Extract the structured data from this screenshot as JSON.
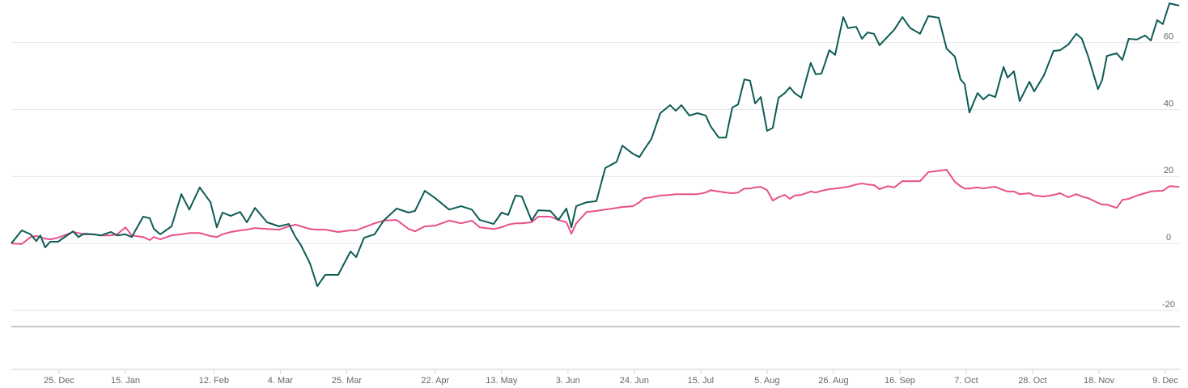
{
  "chart_data": {
    "type": "line",
    "x": [
      -15.1,
      -11.8,
      -9.0,
      -7.2,
      -5.9,
      -4.4,
      -2.8,
      -0.3,
      4.4,
      6.1,
      7.9,
      10.8,
      13.3,
      16.4,
      18.4,
      21.0,
      23.0,
      26.6,
      28.7,
      30.0,
      32.0,
      35.6,
      38.7,
      41.2,
      44.5,
      47.9,
      49.9,
      51.7,
      54.3,
      57.3,
      59.4,
      62.0,
      65.8,
      69.6,
      72.7,
      74.8,
      76.5,
      79.4,
      81.7,
      84.2,
      88.3,
      92.2,
      94.0,
      96.5,
      99.8,
      102.7,
      106.8,
      110.6,
      112.6,
      115.7,
      119.0,
      123.4,
      127.2,
      130.6,
      133.1,
      137.5,
      140.0,
      142.1,
      144.4,
      146.4,
      149.5,
      151.6,
      155.4,
      158.0,
      160.5,
      162.1,
      163.6,
      166.9,
      170.0,
      172.8,
      176.4,
      178.2,
      181.5,
      183.6,
      185.1,
      187.4,
      190.2,
      193.3,
      195.1,
      196.9,
      199.4,
      202.0,
      204.6,
      206.1,
      208.7,
      211.0,
      213.0,
      214.8,
      216.8,
      218.6,
      220.2,
      222.0,
      224.0,
      225.8,
      227.6,
      229.6,
      231.2,
      232.7,
      234.8,
      237.8,
      239.4,
      241.2,
      243.7,
      245.5,
      248.1,
      249.6,
      252.2,
      254.0,
      255.8,
      257.8,
      259.6,
      262.2,
      264.2,
      266.8,
      269.3,
      272.4,
      275.0,
      278.3,
      280.8,
      283.4,
      285.2,
      286.5,
      288.0,
      290.6,
      292.4,
      294.2,
      296.2,
      298.8,
      300.1,
      302.1,
      303.9,
      307.0,
      308.5,
      311.6,
      314.6,
      316.7,
      319.3,
      321.8,
      323.6,
      325.6,
      328.7,
      330.0,
      331.5,
      334.6,
      336.4,
      338.4,
      341.0,
      343.6,
      345.4,
      347.4,
      349.2,
      351.3,
      354.4
    ],
    "series": [
      {
        "color": "#0d5c56",
        "values": [
          0,
          3.9,
          2.7,
          0.7,
          2.4,
          -1.2,
          0.5,
          0.5,
          3.6,
          1.9,
          2.9,
          2.7,
          2.4,
          3.4,
          2.4,
          2.7,
          1.9,
          8.0,
          7.5,
          4.3,
          2.7,
          5.1,
          14.7,
          10.1,
          16.7,
          12.3,
          4.8,
          9.2,
          8.2,
          9.4,
          6.3,
          10.6,
          6.3,
          5.1,
          5.8,
          1.9,
          -0.5,
          -6.0,
          -12.8,
          -9.4,
          -9.4,
          -2.4,
          -4.1,
          1.7,
          2.7,
          6.8,
          10.4,
          9.2,
          9.7,
          15.7,
          13.5,
          10.1,
          11.1,
          10.1,
          7.0,
          5.8,
          9.2,
          8.5,
          14.3,
          14.0,
          6.8,
          9.9,
          9.7,
          7.0,
          10.4,
          4.8,
          11.1,
          12.3,
          12.6,
          22.5,
          24.4,
          29.2,
          26.8,
          25.8,
          28.0,
          31.2,
          38.9,
          41.3,
          39.6,
          41.3,
          38.2,
          38.9,
          38.2,
          35.0,
          31.6,
          31.6,
          40.6,
          41.5,
          49.0,
          48.6,
          41.8,
          43.7,
          33.6,
          34.5,
          43.5,
          44.9,
          46.6,
          44.9,
          43.5,
          53.9,
          50.5,
          50.7,
          57.7,
          56.3,
          67.6,
          64.3,
          64.7,
          61.1,
          63.0,
          62.6,
          59.2,
          61.8,
          63.8,
          67.6,
          64.3,
          62.6,
          67.9,
          67.4,
          58.2,
          55.8,
          49.0,
          47.6,
          39.1,
          44.9,
          43.0,
          44.4,
          43.7,
          52.7,
          49.5,
          51.4,
          42.5,
          48.3,
          45.4,
          50.2,
          57.5,
          57.7,
          59.4,
          62.6,
          61.1,
          55.8,
          46.1,
          48.8,
          56.0,
          56.8,
          54.8,
          61.1,
          60.9,
          62.1,
          60.6,
          66.7,
          65.5,
          71.7,
          71.0
        ]
      },
      {
        "color": "#e8508a",
        "values": [
          0,
          -0.2,
          1.9,
          2.2,
          1.9,
          1.4,
          1.2,
          1.7,
          3.4,
          3.1,
          2.7,
          2.7,
          2.4,
          2.4,
          2.7,
          4.8,
          2.4,
          1.9,
          1.0,
          1.9,
          1.2,
          2.4,
          2.7,
          3.1,
          3.1,
          2.2,
          1.9,
          2.7,
          3.4,
          3.9,
          4.1,
          4.6,
          4.3,
          4.1,
          5.1,
          5.6,
          5.1,
          4.3,
          4.1,
          4.1,
          3.4,
          3.9,
          3.9,
          4.8,
          6.0,
          6.8,
          7.0,
          4.3,
          3.6,
          5.1,
          5.3,
          6.8,
          6.0,
          6.8,
          4.8,
          4.3,
          4.8,
          5.6,
          6.0,
          6.0,
          6.3,
          8.0,
          8.0,
          7.0,
          6.3,
          2.9,
          6.0,
          9.4,
          9.7,
          10.1,
          10.6,
          10.9,
          11.1,
          12.3,
          13.5,
          13.8,
          14.3,
          14.5,
          14.7,
          14.7,
          14.7,
          14.7,
          15.2,
          15.9,
          15.5,
          15.2,
          15.0,
          15.2,
          16.4,
          16.4,
          16.7,
          16.9,
          15.9,
          12.8,
          13.8,
          14.5,
          13.3,
          14.3,
          14.5,
          15.5,
          15.2,
          15.7,
          16.2,
          16.4,
          16.7,
          16.9,
          17.6,
          17.9,
          17.6,
          17.4,
          16.2,
          17.1,
          16.7,
          18.6,
          18.6,
          18.6,
          21.3,
          21.7,
          22.0,
          18.4,
          17.1,
          16.4,
          16.4,
          16.7,
          16.4,
          16.7,
          16.9,
          15.9,
          15.5,
          15.5,
          14.7,
          15.0,
          14.3,
          14.0,
          14.5,
          15.0,
          13.8,
          14.7,
          14.0,
          13.5,
          12.1,
          11.6,
          11.6,
          10.6,
          13.0,
          13.3,
          14.3,
          15.0,
          15.5,
          15.7,
          15.7,
          17.1,
          16.9
        ]
      }
    ],
    "xlim": [
      -15.1,
      354.6
    ],
    "xticks": [
      {
        "value": 0,
        "label": "25. Dec"
      },
      {
        "value": 21,
        "label": "15. Jan"
      },
      {
        "value": 49,
        "label": "12. Feb"
      },
      {
        "value": 70,
        "label": "4. Mar"
      },
      {
        "value": 91,
        "label": "25. Mar"
      },
      {
        "value": 119,
        "label": "22. Apr"
      },
      {
        "value": 140,
        "label": "13. May"
      },
      {
        "value": 161,
        "label": "3. Jun"
      },
      {
        "value": 182,
        "label": "24. Jun"
      },
      {
        "value": 203,
        "label": "15. Jul"
      },
      {
        "value": 224,
        "label": "5. Aug"
      },
      {
        "value": 245,
        "label": "26. Aug"
      },
      {
        "value": 266,
        "label": "16. Sep"
      },
      {
        "value": 287,
        "label": "7. Oct"
      },
      {
        "value": 308,
        "label": "28. Oct"
      },
      {
        "value": 329,
        "label": "18. Nov"
      },
      {
        "value": 350,
        "label": "9. Dec"
      }
    ],
    "ylim": [
      -24.6,
      72.7
    ],
    "yticks": [
      -20,
      0,
      20,
      40,
      60
    ],
    "grid": true
  }
}
